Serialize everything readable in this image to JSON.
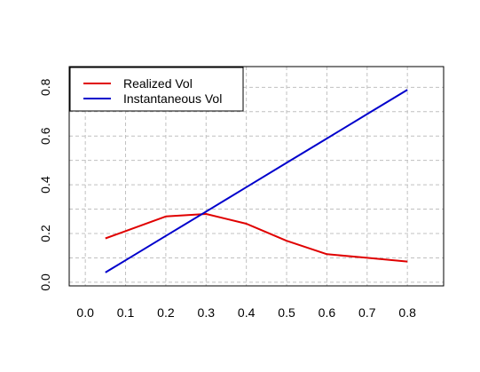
{
  "chart_data": {
    "type": "line",
    "title": "",
    "xlabel": "",
    "ylabel": "",
    "xlim": [
      -0.04,
      0.89
    ],
    "ylim": [
      -0.015,
      0.885
    ],
    "x_ticks": [
      0.0,
      0.1,
      0.2,
      0.3,
      0.4,
      0.5,
      0.6,
      0.7,
      0.8
    ],
    "x_tick_labels": [
      "0.0",
      "0.1",
      "0.2",
      "0.3",
      "0.4",
      "0.5",
      "0.6",
      "0.7",
      "0.8"
    ],
    "y_ticks": [
      0.0,
      0.2,
      0.4,
      0.6,
      0.8
    ],
    "y_tick_labels": [
      "0.0",
      "0.2",
      "0.4",
      "0.6",
      "0.8"
    ],
    "x_grid": [
      0.0,
      0.1,
      0.2,
      0.3,
      0.4,
      0.5,
      0.6,
      0.7,
      0.8
    ],
    "y_grid": [
      0.0,
      0.1,
      0.2,
      0.3,
      0.4,
      0.5,
      0.6,
      0.7,
      0.8
    ],
    "grid": true,
    "grid_color": "#c0c0c0",
    "legend_position": "top-left",
    "series": [
      {
        "name": "Realized Vol",
        "color": "#e00000",
        "x": [
          0.05,
          0.1,
          0.2,
          0.3,
          0.4,
          0.5,
          0.6,
          0.7,
          0.8
        ],
        "values": [
          0.18,
          0.21,
          0.27,
          0.28,
          0.24,
          0.17,
          0.115,
          0.1,
          0.085
        ]
      },
      {
        "name": "Instantaneous Vol",
        "color": "#0000cc",
        "x": [
          0.05,
          0.1,
          0.2,
          0.3,
          0.4,
          0.5,
          0.6,
          0.7,
          0.8
        ],
        "values": [
          0.04,
          0.09,
          0.19,
          0.29,
          0.39,
          0.49,
          0.59,
          0.69,
          0.79
        ]
      }
    ]
  }
}
